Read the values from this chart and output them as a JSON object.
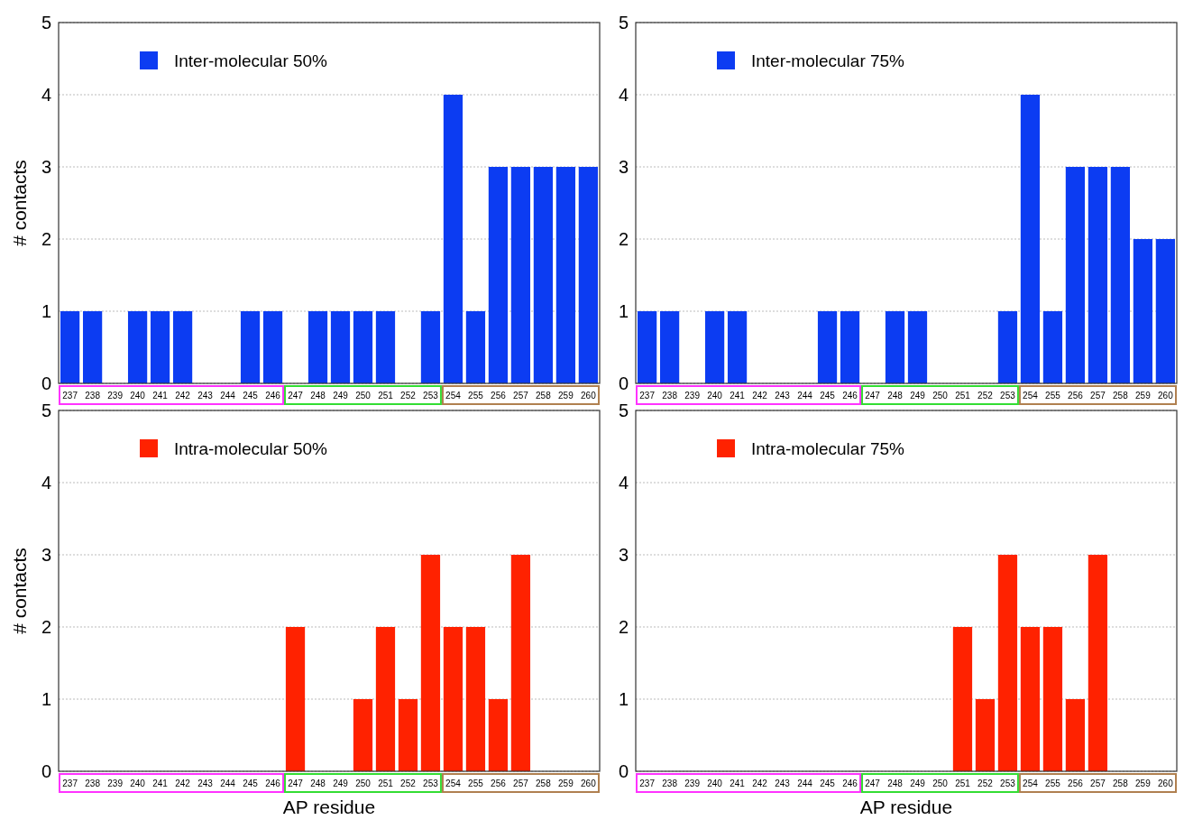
{
  "chart_data": [
    {
      "type": "bar",
      "xlabel": null,
      "ylabel": "# contacts",
      "categories": [
        "237",
        "238",
        "239",
        "240",
        "241",
        "242",
        "243",
        "244",
        "245",
        "246",
        "247",
        "248",
        "249",
        "250",
        "251",
        "252",
        "253",
        "254",
        "255",
        "256",
        "257",
        "258",
        "259",
        "260"
      ],
      "series": [
        {
          "name": "Inter-molecular 50%",
          "color": "#0c3cf2",
          "values": [
            1,
            1,
            0,
            1,
            1,
            1,
            0,
            0,
            1,
            1,
            0,
            1,
            1,
            1,
            1,
            0,
            1,
            4,
            1,
            3,
            3,
            3,
            3,
            3
          ]
        }
      ],
      "ylim": [
        0,
        5
      ],
      "yticks": [
        0,
        1,
        2,
        3,
        4,
        5
      ],
      "grid": "y",
      "legend": "top left"
    },
    {
      "type": "bar",
      "categories": [
        "237",
        "238",
        "239",
        "240",
        "241",
        "242",
        "243",
        "244",
        "245",
        "246",
        "247",
        "248",
        "249",
        "250",
        "251",
        "252",
        "253",
        "254",
        "255",
        "256",
        "257",
        "258",
        "259",
        "260"
      ],
      "series": [
        {
          "name": "Inter-molecular 75%",
          "color": "#0c3cf2",
          "values": [
            1,
            1,
            0,
            1,
            1,
            0,
            0,
            0,
            1,
            1,
            0,
            1,
            1,
            0,
            0,
            0,
            1,
            4,
            1,
            3,
            3,
            3,
            2,
            2
          ]
        }
      ],
      "ylim": [
        0,
        5
      ],
      "yticks": [
        0,
        1,
        2,
        3,
        4,
        5
      ],
      "grid": "y",
      "legend": "top left"
    },
    {
      "type": "bar",
      "xlabel": "AP residue",
      "ylabel": "# contacts",
      "categories": [
        "237",
        "238",
        "239",
        "240",
        "241",
        "242",
        "243",
        "244",
        "245",
        "246",
        "247",
        "248",
        "249",
        "250",
        "251",
        "252",
        "253",
        "254",
        "255",
        "256",
        "257",
        "258",
        "259",
        "260"
      ],
      "series": [
        {
          "name": "Intra-molecular 50%",
          "color": "#ff2200",
          "values": [
            0,
            0,
            0,
            0,
            0,
            0,
            0,
            0,
            0,
            0,
            2,
            0,
            0,
            1,
            2,
            1,
            3,
            2,
            2,
            1,
            3,
            0,
            0,
            0
          ]
        }
      ],
      "ylim": [
        0,
        5
      ],
      "yticks": [
        0,
        1,
        2,
        3,
        4,
        5
      ],
      "grid": "y",
      "legend": "top left"
    },
    {
      "type": "bar",
      "xlabel": "AP residue",
      "categories": [
        "237",
        "238",
        "239",
        "240",
        "241",
        "242",
        "243",
        "244",
        "245",
        "246",
        "247",
        "248",
        "249",
        "250",
        "251",
        "252",
        "253",
        "254",
        "255",
        "256",
        "257",
        "258",
        "259",
        "260"
      ],
      "series": [
        {
          "name": "Intra-molecular 75%",
          "color": "#ff2200",
          "values": [
            0,
            0,
            0,
            0,
            0,
            0,
            0,
            0,
            0,
            0,
            0,
            0,
            0,
            0,
            2,
            1,
            3,
            2,
            2,
            1,
            3,
            0,
            0,
            0
          ]
        }
      ],
      "ylim": [
        0,
        5
      ],
      "yticks": [
        0,
        1,
        2,
        3,
        4,
        5
      ],
      "grid": "y",
      "legend": "top left"
    }
  ]
}
